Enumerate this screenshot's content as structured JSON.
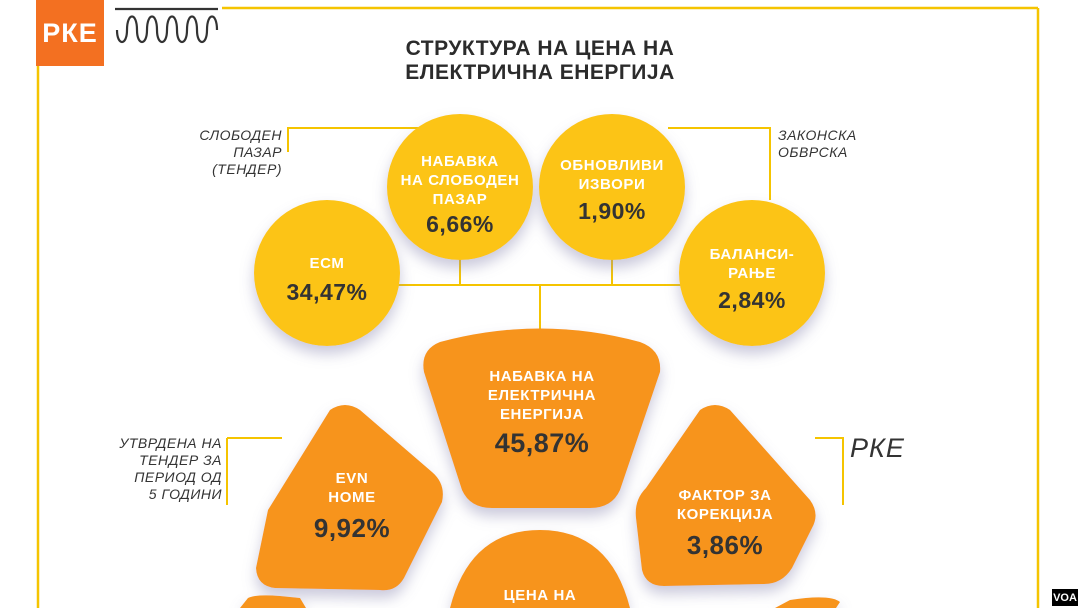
{
  "brand": {
    "logo_text": "РКЕ",
    "accent": "#f37021",
    "line_color": "#f5c400"
  },
  "title_lines": [
    "СТРУКТУРА НА ЦЕНА НА",
    "ЕЛЕКТРИЧНА ЕНЕРГИЈА"
  ],
  "notes": {
    "free_market": [
      "СЛОБОДЕН",
      "ПАЗАР",
      "(ТЕНДЕР)"
    ],
    "legal_obligation": [
      "ЗАКОНСКА",
      "ОБВРСКА"
    ],
    "tender": [
      "УТВРДЕНА НА",
      "ТЕНДЕР ЗА",
      "ПЕРИОД ОД",
      "5 ГОДИНИ"
    ],
    "rke": "РКЕ"
  },
  "yellow_nodes": [
    {
      "id": "ecm",
      "name_lines": [
        "ЕСМ"
      ],
      "value": "34,47%"
    },
    {
      "id": "free-market-purchase",
      "name_lines": [
        "НАБАВКА",
        "НА СЛОБОДЕН",
        "ПАЗАР"
      ],
      "value": "6,66%"
    },
    {
      "id": "renewables",
      "name_lines": [
        "ОБНОВЛИВИ",
        "ИЗВОРИ"
      ],
      "value": "1,90%"
    },
    {
      "id": "balancing",
      "name_lines": [
        "БАЛАНСИ-",
        "РАЊЕ"
      ],
      "value": "2,84%"
    }
  ],
  "orange_nodes": [
    {
      "id": "electricity-purchase",
      "name_lines": [
        "НАБАВКА НА",
        "ЕЛЕКТРИЧНА",
        "ЕНЕРГИЈА"
      ],
      "value": "45,87%"
    },
    {
      "id": "evn-home",
      "name_lines": [
        "EVN",
        "HOME"
      ],
      "value": "9,92%"
    },
    {
      "id": "correction-factor",
      "name_lines": [
        "ФАКТОР ЗА",
        "КОРЕКЦИЈА"
      ],
      "value": "3,86%"
    },
    {
      "id": "price",
      "name_lines": [
        "ЦЕНА НА"
      ],
      "value": ""
    }
  ],
  "colors": {
    "yellow": "#fcc416",
    "orange": "#f7941d",
    "text_dark": "#333333"
  },
  "watermark": "VOA"
}
